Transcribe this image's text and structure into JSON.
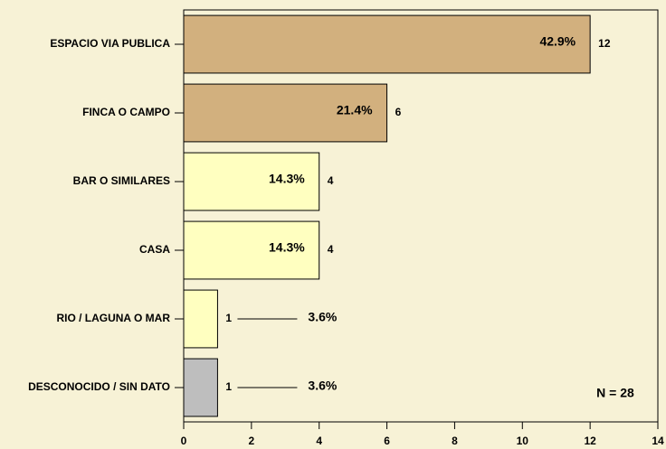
{
  "chart_data": {
    "type": "barh",
    "categories": [
      "ESPACIO VIA PUBLICA",
      "FINCA O CAMPO",
      "BAR O SIMILARES",
      "CASA",
      "RIO / LAGUNA O MAR",
      "DESCONOCIDO / SIN DATO"
    ],
    "values": [
      12,
      6,
      4,
      4,
      1,
      1
    ],
    "colors": [
      "#d2b07e",
      "#d2b07e",
      "#ffffc0",
      "#ffffc0",
      "#ffffc0",
      "#bebebe"
    ],
    "percentages": [
      42.9,
      21.4,
      14.3,
      14.3,
      3.6,
      3.6
    ],
    "percentage_labels": [
      "42.9%",
      "21.4%",
      "14.3%",
      "14.3%",
      "3.6%",
      "3.6%"
    ],
    "xlim": [
      0,
      14
    ],
    "xticks": [
      0,
      2,
      4,
      6,
      8,
      10,
      12,
      14
    ],
    "annotation": "N = 28"
  }
}
